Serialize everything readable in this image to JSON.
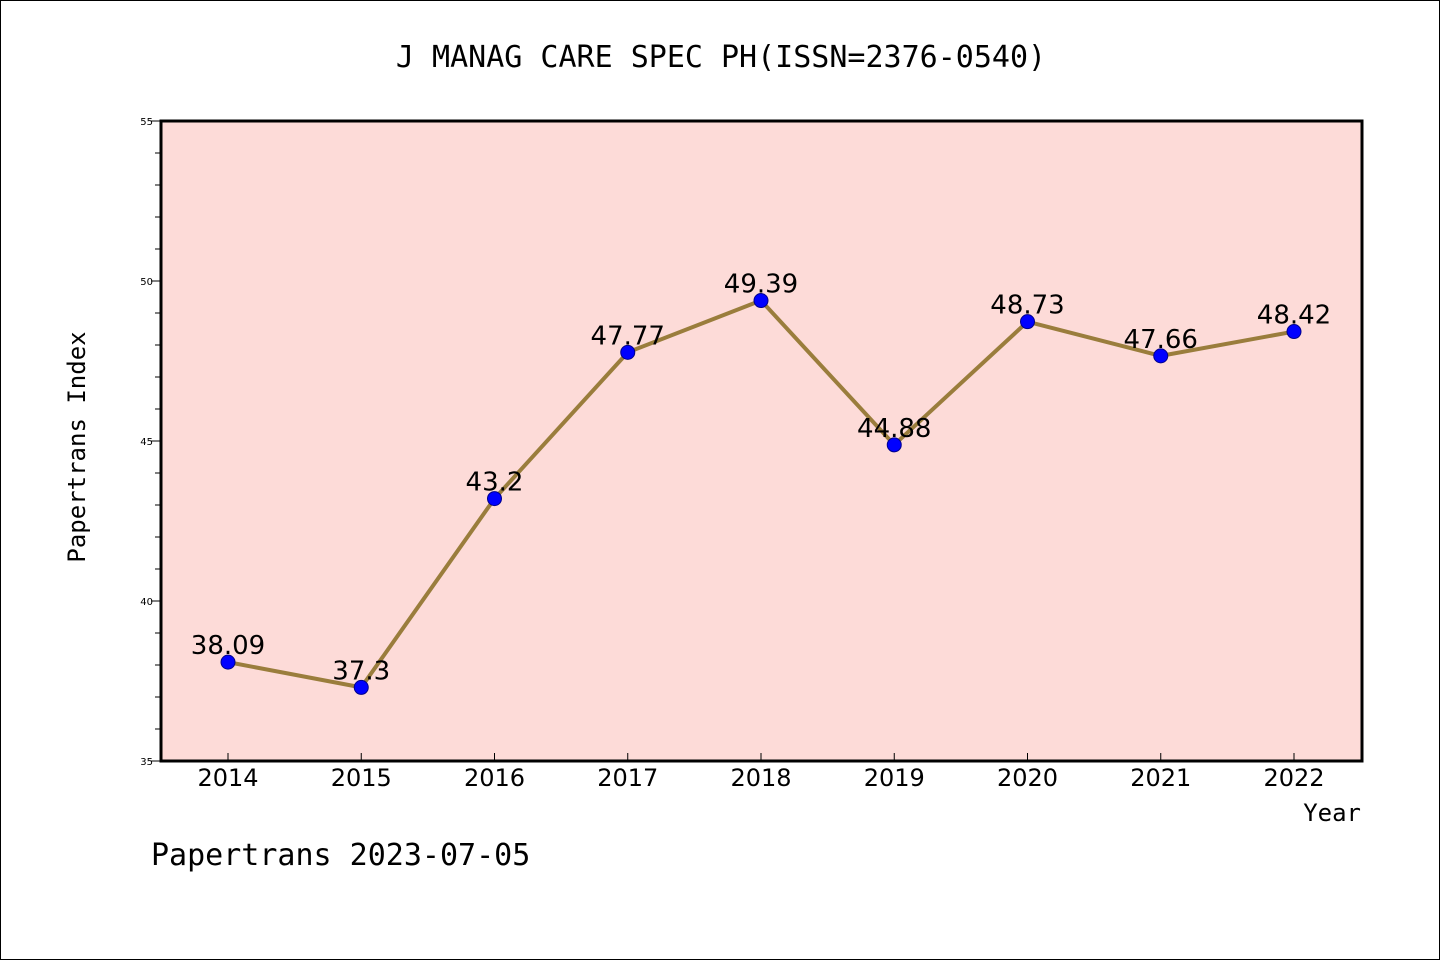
{
  "chart_data": {
    "type": "line",
    "title": "J MANAG CARE SPEC PH(ISSN=2376-0540)",
    "xlabel": "Year",
    "ylabel": "Papertrans Index",
    "categories": [
      "2014",
      "2015",
      "2016",
      "2017",
      "2018",
      "2019",
      "2020",
      "2021",
      "2022"
    ],
    "values": [
      38.09,
      37.3,
      43.2,
      47.77,
      49.39,
      44.88,
      48.73,
      47.66,
      48.42
    ],
    "data_labels": [
      "38.09",
      "37.3",
      "43.2",
      "47.77",
      "49.39",
      "44.88",
      "48.73",
      "47.66",
      "48.42"
    ],
    "ylim": [
      35,
      55
    ],
    "yticks": [
      "35",
      "40",
      "45",
      "50",
      "55"
    ],
    "grid": false,
    "legend": "none",
    "colors": {
      "plot_background": "#fddbd8",
      "line": "#9a7d3c",
      "marker": "#0000ff",
      "marker_edge": "#00008b",
      "axes": "#000000"
    }
  },
  "footer": "Papertrans 2023-07-05"
}
